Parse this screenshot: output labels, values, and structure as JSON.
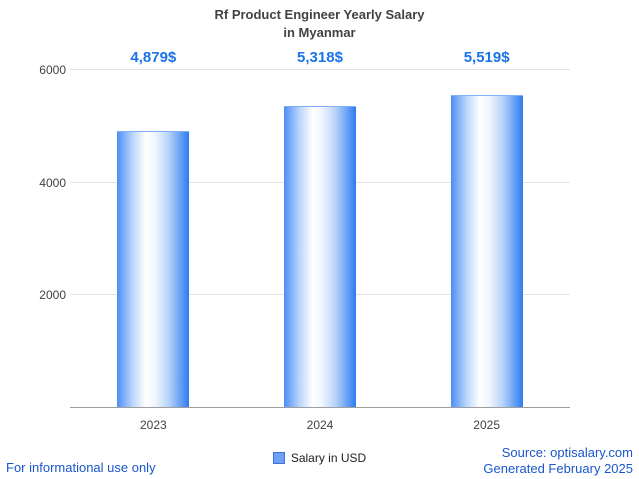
{
  "title": {
    "line1": "Rf Product Engineer Yearly Salary",
    "line2": "in Myanmar"
  },
  "chart_data": {
    "type": "bar",
    "categories": [
      "2023",
      "2024",
      "2025"
    ],
    "values": [
      4879,
      5318,
      5519
    ],
    "value_labels": [
      "4,879$",
      "5,318$",
      "5,519$"
    ],
    "series_name": "Salary in USD",
    "title": "Rf Product Engineer Yearly Salary in Myanmar",
    "xlabel": "",
    "ylabel": "",
    "ylim": [
      0,
      6000
    ],
    "yticks": [
      2000,
      4000,
      6000
    ],
    "grid": true,
    "legend_position": "bottom",
    "bar_color_edge": "#2e7bf0",
    "bar_color_center": "#ffffff",
    "value_label_color": "#1a73e8"
  },
  "legend": {
    "label": "Salary in USD"
  },
  "footer": {
    "left": "For informational use only",
    "source": "Source: optisalary.com",
    "generated": "Generated February 2025"
  }
}
